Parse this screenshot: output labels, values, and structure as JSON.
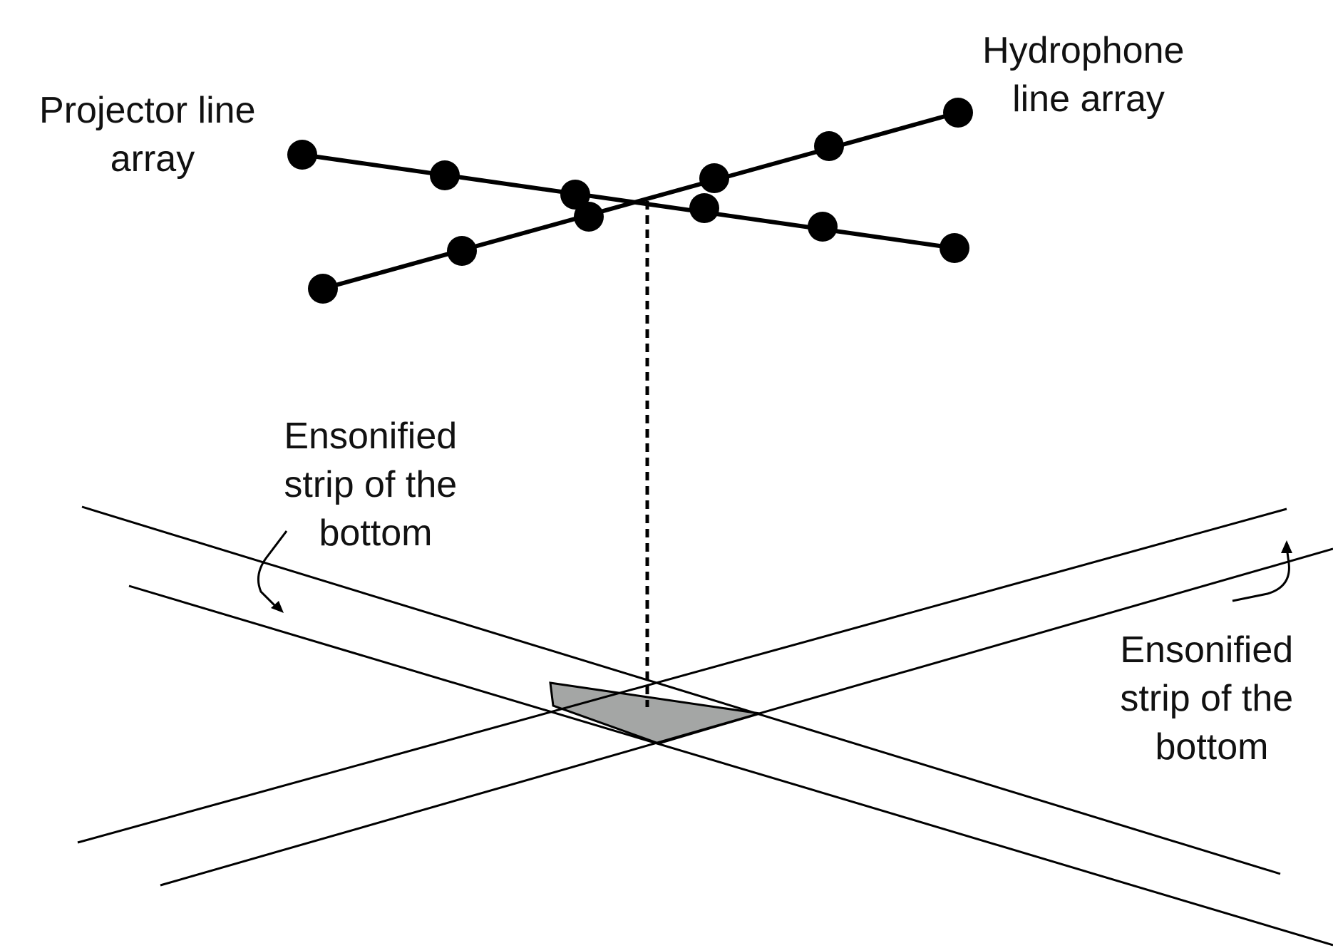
{
  "labels": {
    "projector": [
      "Projector line",
      "array"
    ],
    "hydrophone": [
      "Hydrophone",
      "line array"
    ],
    "strip_left": [
      "Ensonified",
      "strip of the",
      "bottom"
    ],
    "strip_right": [
      "Ensonified",
      "strip of the",
      "bottom"
    ]
  },
  "colors": {
    "ink": "#000000",
    "overlap_fill": "#a4a6a5",
    "background": "#ffffff"
  }
}
